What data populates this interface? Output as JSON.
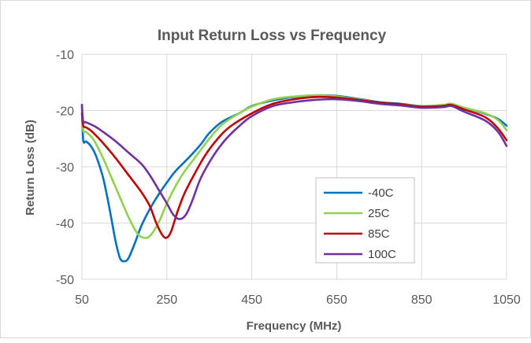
{
  "chart_data": {
    "type": "line",
    "title": "Input Return Loss vs Frequency",
    "xlabel": "Frequency (MHz)",
    "ylabel": "Return Loss (dB)",
    "xlim": [
      50,
      1050
    ],
    "ylim": [
      -50,
      -10
    ],
    "xticks": [
      50,
      250,
      450,
      650,
      850,
      1050
    ],
    "yticks": [
      -10,
      -20,
      -30,
      -40,
      -50
    ],
    "grid": true,
    "legend_position": "lower-right-inside",
    "series": [
      {
        "name": "-40C",
        "color": "#0070C0",
        "points": [
          [
            50,
            -19
          ],
          [
            53,
            -25.2
          ],
          [
            60,
            -25.5
          ],
          [
            70,
            -26.2
          ],
          [
            80,
            -27.5
          ],
          [
            90,
            -29.5
          ],
          [
            100,
            -32
          ],
          [
            110,
            -35.5
          ],
          [
            120,
            -39.5
          ],
          [
            130,
            -43.5
          ],
          [
            140,
            -46.3
          ],
          [
            150,
            -46.8
          ],
          [
            160,
            -46.2
          ],
          [
            175,
            -43.5
          ],
          [
            190,
            -40.5
          ],
          [
            210,
            -37.5
          ],
          [
            230,
            -35
          ],
          [
            250,
            -32.8
          ],
          [
            270,
            -30.8
          ],
          [
            300,
            -28.5
          ],
          [
            330,
            -26
          ],
          [
            350,
            -24
          ],
          [
            380,
            -22
          ],
          [
            420,
            -20.5
          ],
          [
            450,
            -19.2
          ],
          [
            500,
            -18.2
          ],
          [
            550,
            -17.6
          ],
          [
            600,
            -17.3
          ],
          [
            650,
            -17.4
          ],
          [
            700,
            -17.9
          ],
          [
            750,
            -18.5
          ],
          [
            800,
            -18.8
          ],
          [
            850,
            -19.2
          ],
          [
            900,
            -19.1
          ],
          [
            920,
            -18.9
          ],
          [
            950,
            -19.5
          ],
          [
            1000,
            -20.6
          ],
          [
            1030,
            -21.5
          ],
          [
            1050,
            -22.7
          ]
        ]
      },
      {
        "name": "25C",
        "color": "#92D050",
        "points": [
          [
            50,
            -19.5
          ],
          [
            53,
            -23.5
          ],
          [
            60,
            -23.8
          ],
          [
            70,
            -24.5
          ],
          [
            80,
            -25.5
          ],
          [
            100,
            -28.5
          ],
          [
            120,
            -32
          ],
          [
            140,
            -35.5
          ],
          [
            160,
            -39
          ],
          [
            180,
            -41.8
          ],
          [
            195,
            -42.6
          ],
          [
            210,
            -42.3
          ],
          [
            230,
            -40
          ],
          [
            250,
            -36.5
          ],
          [
            270,
            -33.5
          ],
          [
            290,
            -31
          ],
          [
            320,
            -28
          ],
          [
            350,
            -25
          ],
          [
            380,
            -22.5
          ],
          [
            420,
            -20.5
          ],
          [
            450,
            -19.3
          ],
          [
            500,
            -18
          ],
          [
            550,
            -17.5
          ],
          [
            600,
            -17.3
          ],
          [
            650,
            -17.5
          ],
          [
            700,
            -18
          ],
          [
            750,
            -18.6
          ],
          [
            800,
            -18.9
          ],
          [
            850,
            -19.2
          ],
          [
            900,
            -19
          ],
          [
            920,
            -18.8
          ],
          [
            950,
            -19.5
          ],
          [
            1000,
            -20.5
          ],
          [
            1030,
            -21.7
          ],
          [
            1050,
            -23.5
          ]
        ]
      },
      {
        "name": "85C",
        "color": "#C00000",
        "points": [
          [
            50,
            -20.5
          ],
          [
            53,
            -22.7
          ],
          [
            60,
            -23
          ],
          [
            70,
            -23.5
          ],
          [
            80,
            -24.2
          ],
          [
            100,
            -25.8
          ],
          [
            130,
            -28.5
          ],
          [
            160,
            -31.5
          ],
          [
            190,
            -34.5
          ],
          [
            210,
            -37
          ],
          [
            225,
            -40
          ],
          [
            240,
            -42.2
          ],
          [
            250,
            -42.6
          ],
          [
            260,
            -41.5
          ],
          [
            275,
            -38
          ],
          [
            290,
            -35
          ],
          [
            310,
            -32
          ],
          [
            340,
            -28
          ],
          [
            370,
            -25
          ],
          [
            400,
            -22.8
          ],
          [
            450,
            -20.5
          ],
          [
            500,
            -18.8
          ],
          [
            550,
            -18
          ],
          [
            600,
            -17.6
          ],
          [
            650,
            -17.7
          ],
          [
            700,
            -18.1
          ],
          [
            750,
            -18.6
          ],
          [
            800,
            -18.9
          ],
          [
            850,
            -19.3
          ],
          [
            900,
            -19.2
          ],
          [
            920,
            -19
          ],
          [
            950,
            -19.8
          ],
          [
            1000,
            -21.2
          ],
          [
            1030,
            -23.2
          ],
          [
            1050,
            -25.3
          ]
        ]
      },
      {
        "name": "100C",
        "color": "#7030A0",
        "points": [
          [
            50,
            -19
          ],
          [
            53,
            -21.9
          ],
          [
            60,
            -22.1
          ],
          [
            80,
            -22.8
          ],
          [
            100,
            -23.8
          ],
          [
            130,
            -25.5
          ],
          [
            160,
            -27.5
          ],
          [
            190,
            -29.5
          ],
          [
            210,
            -31.5
          ],
          [
            230,
            -34
          ],
          [
            250,
            -36.5
          ],
          [
            265,
            -38.5
          ],
          [
            280,
            -39.3
          ],
          [
            295,
            -38.5
          ],
          [
            310,
            -36
          ],
          [
            330,
            -32
          ],
          [
            360,
            -28
          ],
          [
            390,
            -25
          ],
          [
            420,
            -22.8
          ],
          [
            450,
            -21
          ],
          [
            500,
            -19.2
          ],
          [
            550,
            -18.5
          ],
          [
            600,
            -18.1
          ],
          [
            650,
            -18
          ],
          [
            700,
            -18.3
          ],
          [
            750,
            -18.8
          ],
          [
            800,
            -19.1
          ],
          [
            850,
            -19.5
          ],
          [
            900,
            -19.4
          ],
          [
            920,
            -19.2
          ],
          [
            950,
            -20.2
          ],
          [
            1000,
            -21.8
          ],
          [
            1030,
            -23.8
          ],
          [
            1050,
            -26.3
          ]
        ]
      }
    ]
  }
}
